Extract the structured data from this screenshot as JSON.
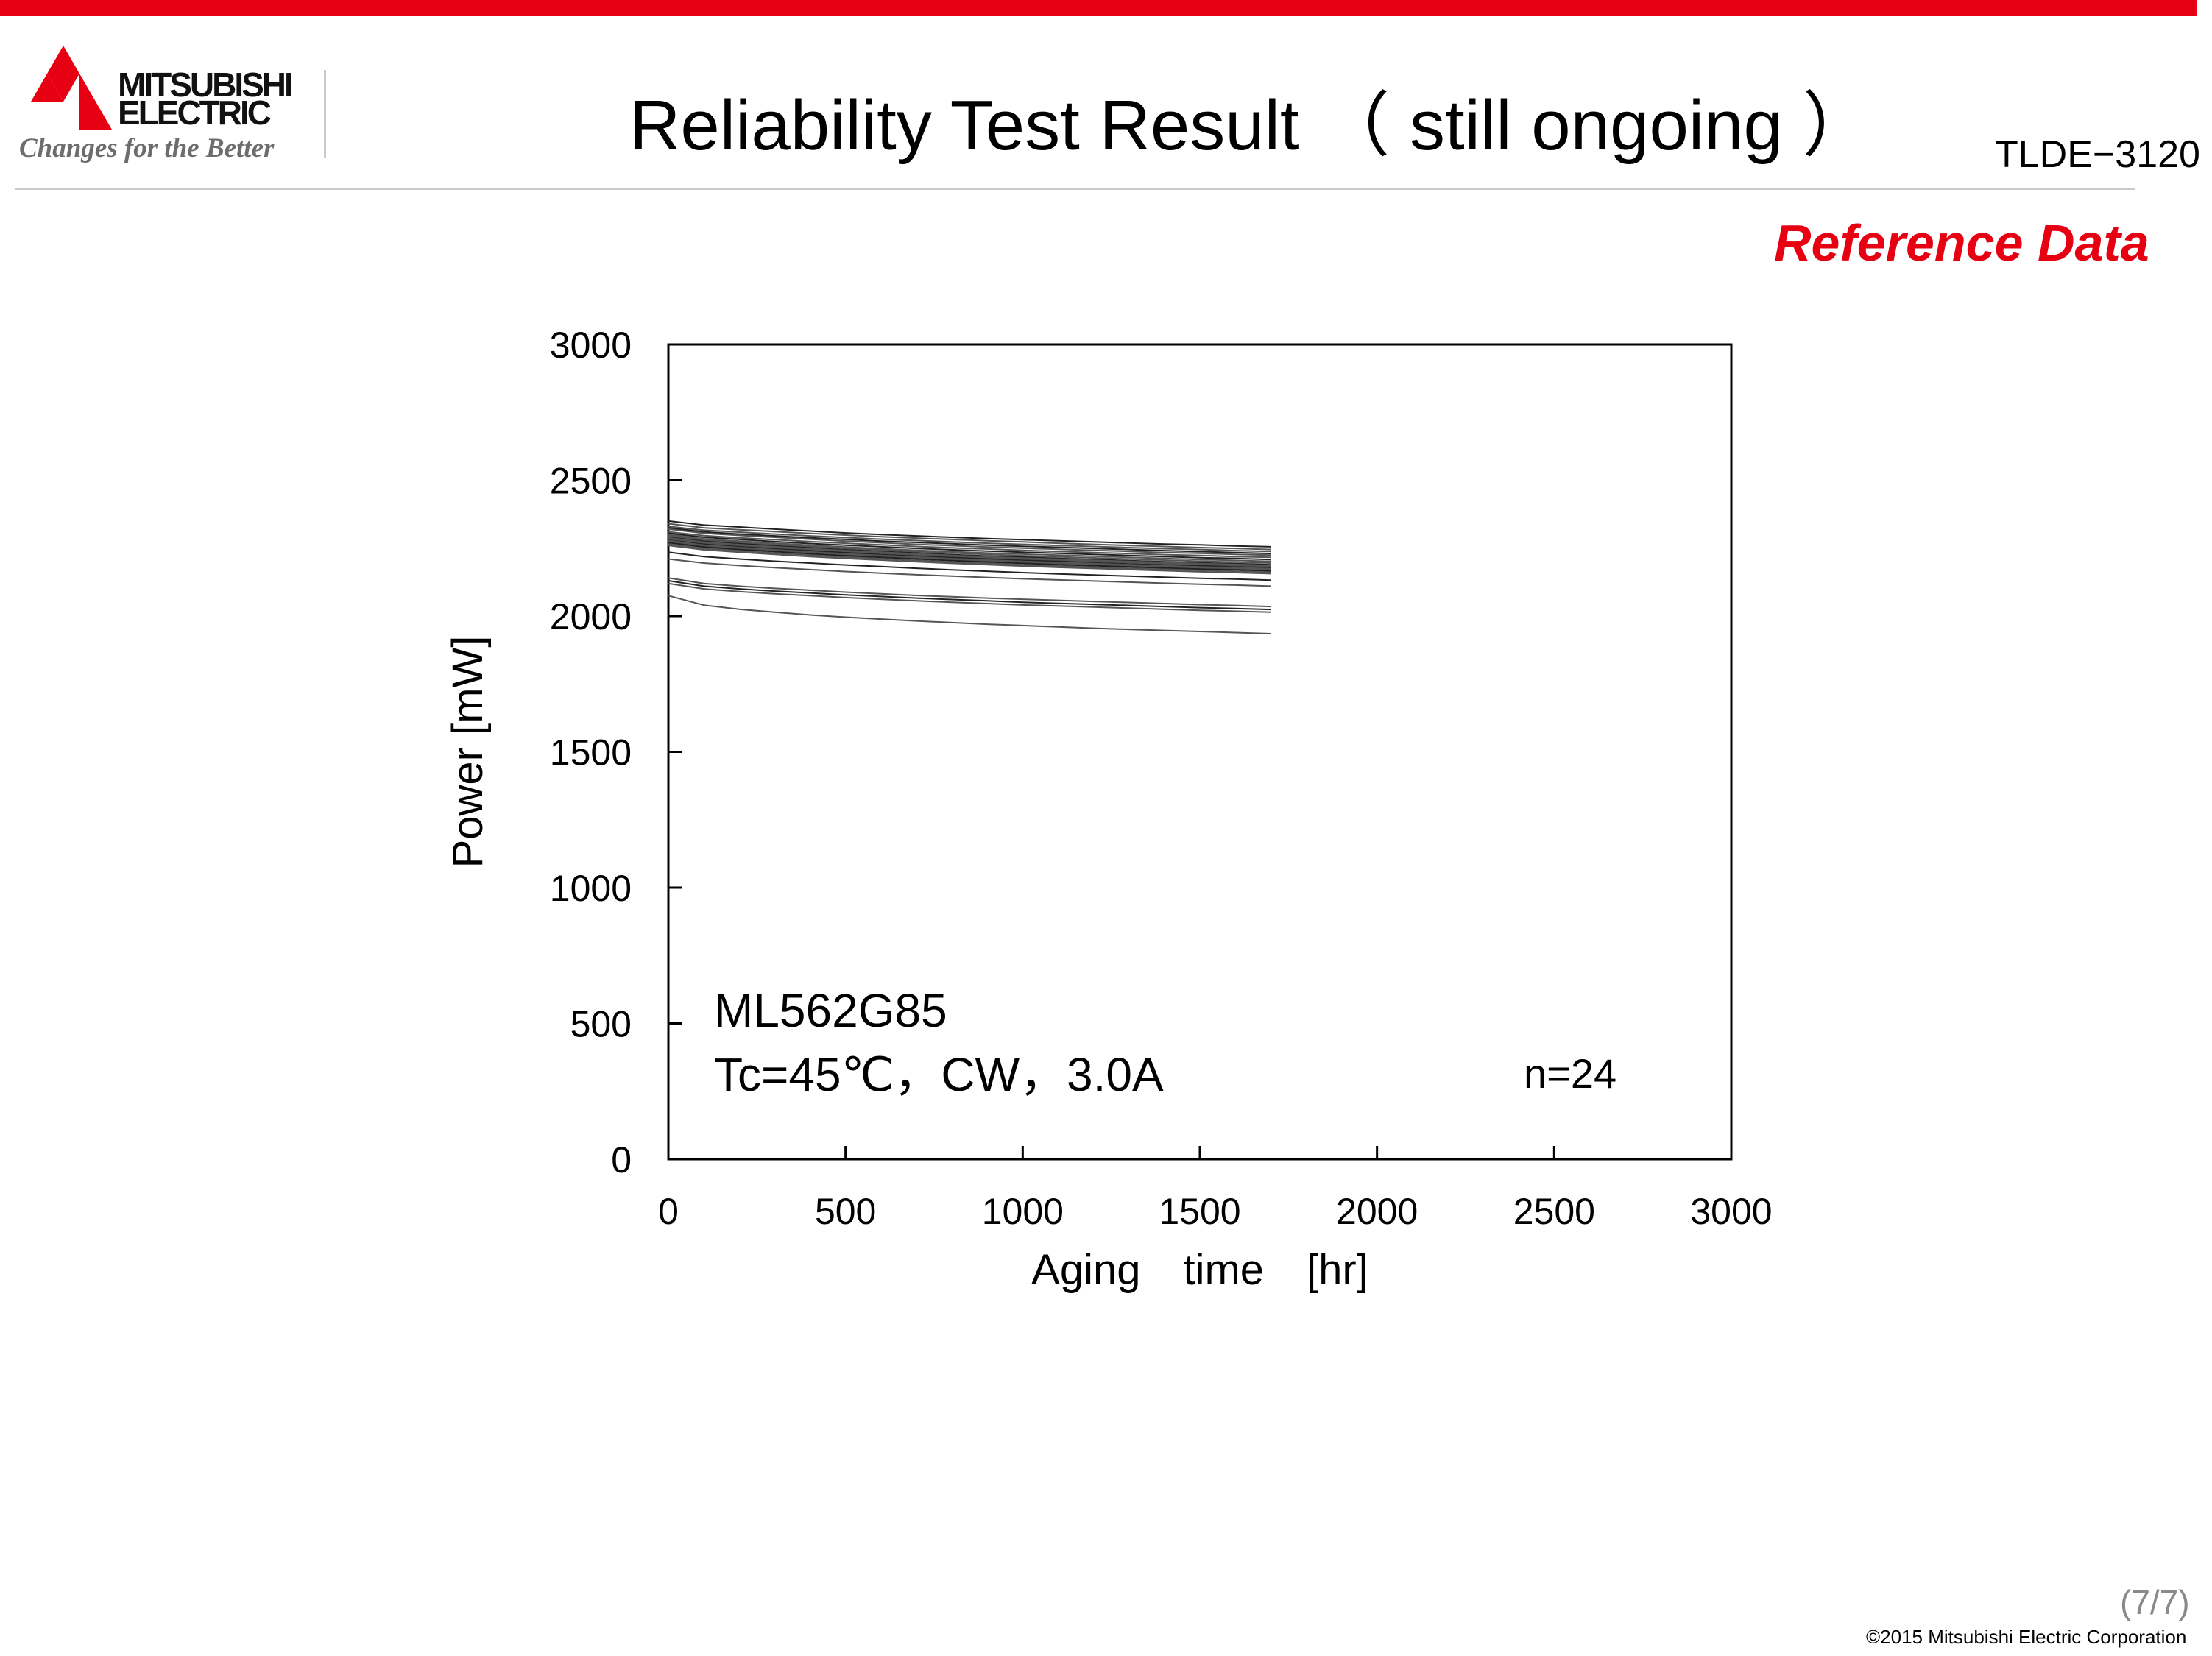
{
  "header": {
    "brand_line1": "MITSUBISHI",
    "brand_line2": "ELECTRIC",
    "tagline": "Changes for the Better",
    "title": "Reliability Test Result （ still ongoing ）",
    "doc_code": "TLDE−3120"
  },
  "badge": {
    "label": "Reference Data",
    "color": "#e60012"
  },
  "colors": {
    "brand_red": "#e60012",
    "rule_gray": "#c9c9c9"
  },
  "chart_data": {
    "type": "line",
    "xlabel": "Aging　time　[hr]",
    "ylabel": "Power [mW]",
    "xlim": [
      0,
      3000
    ],
    "ylim": [
      0,
      3000
    ],
    "x_ticks": [
      "0",
      "500",
      "1000",
      "1500",
      "2000",
      "2500",
      "3000"
    ],
    "y_ticks": [
      "0",
      "500",
      "1000",
      "1500",
      "2000",
      "2500",
      "3000"
    ],
    "grid": false,
    "legend": "none",
    "annotations": {
      "model": "ML562G85",
      "conditions": "Tc=45℃，CW，3.0A",
      "sample_size": "n=24"
    },
    "x": [
      0,
      100,
      200,
      300,
      400,
      500,
      600,
      700,
      800,
      900,
      1000,
      1100,
      1200,
      1300,
      1400,
      1500,
      1600,
      1700
    ],
    "series": [
      {
        "values": [
          2350,
          2335,
          2328,
          2320,
          2313,
          2306,
          2300,
          2295,
          2290,
          2285,
          2281,
          2277,
          2273,
          2269,
          2265,
          2262,
          2258,
          2255
        ]
      },
      {
        "values": [
          2340,
          2325,
          2318,
          2311,
          2304,
          2298,
          2292,
          2287,
          2282,
          2277,
          2273,
          2268,
          2264,
          2260,
          2256,
          2252,
          2249,
          2245
        ]
      },
      {
        "values": [
          2330,
          2316,
          2309,
          2302,
          2295,
          2289,
          2283,
          2278,
          2273,
          2268,
          2264,
          2260,
          2256,
          2252,
          2248,
          2245,
          2241,
          2238
        ]
      },
      {
        "values": [
          2325,
          2310,
          2302,
          2295,
          2288,
          2282,
          2276,
          2271,
          2266,
          2261,
          2257,
          2253,
          2249,
          2245,
          2241,
          2237,
          2234,
          2230
        ]
      },
      {
        "values": [
          2320,
          2305,
          2297,
          2290,
          2283,
          2276,
          2270,
          2264,
          2259,
          2254,
          2250,
          2246,
          2242,
          2238,
          2234,
          2231,
          2227,
          2224
        ]
      },
      {
        "values": [
          2310,
          2296,
          2288,
          2281,
          2274,
          2268,
          2262,
          2256,
          2251,
          2247,
          2242,
          2238,
          2234,
          2230,
          2226,
          2223,
          2219,
          2216
        ]
      },
      {
        "values": [
          2305,
          2290,
          2282,
          2274,
          2267,
          2261,
          2255,
          2249,
          2244,
          2239,
          2235,
          2231,
          2227,
          2223,
          2219,
          2215,
          2212,
          2208
        ]
      },
      {
        "values": [
          2300,
          2284,
          2276,
          2268,
          2261,
          2254,
          2248,
          2242,
          2237,
          2232,
          2228,
          2224,
          2220,
          2216,
          2212,
          2208,
          2205,
          2201
        ]
      },
      {
        "values": [
          2295,
          2280,
          2271,
          2263,
          2256,
          2249,
          2243,
          2237,
          2232,
          2227,
          2222,
          2218,
          2214,
          2210,
          2206,
          2202,
          2199,
          2195
        ]
      },
      {
        "values": [
          2290,
          2275,
          2266,
          2258,
          2251,
          2244,
          2238,
          2232,
          2226,
          2221,
          2217,
          2212,
          2208,
          2204,
          2200,
          2196,
          2193,
          2189
        ]
      },
      {
        "values": [
          2288,
          2272,
          2263,
          2255,
          2248,
          2241,
          2235,
          2229,
          2223,
          2218,
          2213,
          2209,
          2205,
          2201,
          2197,
          2193,
          2190,
          2186
        ]
      },
      {
        "values": [
          2285,
          2268,
          2259,
          2251,
          2244,
          2237,
          2231,
          2225,
          2219,
          2214,
          2209,
          2205,
          2201,
          2197,
          2193,
          2189,
          2186,
          2182
        ]
      },
      {
        "values": [
          2280,
          2264,
          2255,
          2247,
          2240,
          2233,
          2226,
          2220,
          2215,
          2210,
          2205,
          2201,
          2196,
          2192,
          2188,
          2185,
          2181,
          2178
        ]
      },
      {
        "values": [
          2278,
          2261,
          2252,
          2244,
          2236,
          2229,
          2223,
          2217,
          2211,
          2206,
          2201,
          2197,
          2193,
          2189,
          2185,
          2181,
          2178,
          2174
        ]
      },
      {
        "values": [
          2275,
          2258,
          2249,
          2241,
          2233,
          2226,
          2220,
          2214,
          2208,
          2203,
          2198,
          2193,
          2189,
          2185,
          2181,
          2177,
          2174,
          2170
        ]
      },
      {
        "values": [
          2270,
          2254,
          2245,
          2237,
          2229,
          2222,
          2216,
          2210,
          2204,
          2199,
          2194,
          2189,
          2185,
          2181,
          2177,
          2173,
          2170,
          2166
        ]
      },
      {
        "values": [
          2265,
          2249,
          2240,
          2232,
          2224,
          2217,
          2211,
          2205,
          2199,
          2194,
          2189,
          2184,
          2180,
          2176,
          2172,
          2168,
          2165,
          2161
        ]
      },
      {
        "values": [
          2260,
          2244,
          2235,
          2227,
          2219,
          2212,
          2206,
          2200,
          2194,
          2189,
          2184,
          2179,
          2175,
          2171,
          2167,
          2163,
          2160,
          2156
        ]
      },
      {
        "values": [
          2235,
          2219,
          2210,
          2202,
          2195,
          2188,
          2182,
          2176,
          2170,
          2165,
          2160,
          2155,
          2151,
          2147,
          2143,
          2139,
          2136,
          2132
        ]
      },
      {
        "values": [
          2210,
          2195,
          2186,
          2178,
          2171,
          2164,
          2158,
          2152,
          2147,
          2142,
          2137,
          2133,
          2129,
          2125,
          2121,
          2117,
          2114,
          2110
        ]
      },
      {
        "values": [
          2140,
          2120,
          2110,
          2102,
          2095,
          2088,
          2082,
          2076,
          2071,
          2066,
          2062,
          2058,
          2054,
          2050,
          2046,
          2042,
          2039,
          2035
        ]
      },
      {
        "values": [
          2130,
          2110,
          2100,
          2092,
          2085,
          2078,
          2072,
          2066,
          2061,
          2056,
          2051,
          2047,
          2043,
          2039,
          2035,
          2031,
          2028,
          2024
        ]
      },
      {
        "values": [
          2120,
          2100,
          2090,
          2082,
          2075,
          2068,
          2062,
          2056,
          2051,
          2046,
          2041,
          2037,
          2033,
          2029,
          2025,
          2021,
          2018,
          2014
        ]
      },
      {
        "values": [
          2075,
          2040,
          2025,
          2014,
          2004,
          1996,
          1989,
          1982,
          1976,
          1970,
          1965,
          1960,
          1955,
          1951,
          1947,
          1943,
          1939,
          1935
        ]
      }
    ]
  },
  "footer": {
    "page": "(7/7)",
    "copyright": "©2015 Mitsubishi Electric Corporation"
  }
}
